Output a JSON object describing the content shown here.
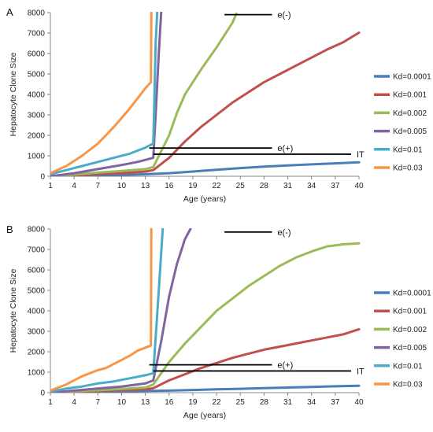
{
  "chart_data": [
    {
      "panel_label": "A",
      "type": "line",
      "ylabel": "Hepatocyte Clone Size",
      "xlabel": "Age (years)",
      "xlim": [
        1,
        40
      ],
      "ylim": [
        0,
        8000
      ],
      "x_ticks": [
        "1",
        "4",
        "7",
        "10",
        "13",
        "16",
        "19",
        "22",
        "25",
        "28",
        "31",
        "34",
        "37",
        "40"
      ],
      "y_ticks": [
        "0",
        "1000",
        "2000",
        "3000",
        "4000",
        "5000",
        "6000",
        "7000",
        "8000"
      ],
      "annotations": [
        {
          "text": "e(-)",
          "line_from": [
            23,
            7900
          ],
          "line_to": [
            29,
            7900
          ]
        },
        {
          "text": "e(+)",
          "line_from": [
            13.5,
            1380
          ],
          "line_to": [
            29,
            1380
          ]
        },
        {
          "text": "IT",
          "line_from": [
            14,
            1080
          ],
          "line_to": [
            39,
            1080
          ]
        }
      ],
      "series": [
        {
          "name": "Kd=0.0001",
          "color": "#4a7ebb",
          "points": [
            [
              1,
              0
            ],
            [
              4,
              20
            ],
            [
              7,
              45
            ],
            [
              10,
              70
            ],
            [
              13,
              100
            ],
            [
              16,
              150
            ],
            [
              19,
              230
            ],
            [
              22,
              320
            ],
            [
              25,
              400
            ],
            [
              28,
              470
            ],
            [
              31,
              530
            ],
            [
              34,
              580
            ],
            [
              37,
              630
            ],
            [
              40,
              680
            ]
          ]
        },
        {
          "name": "Kd=0.001",
          "color": "#c0504d",
          "points": [
            [
              1,
              0
            ],
            [
              4,
              50
            ],
            [
              7,
              100
            ],
            [
              10,
              150
            ],
            [
              13,
              230
            ],
            [
              14,
              300
            ],
            [
              16,
              900
            ],
            [
              18,
              1700
            ],
            [
              20,
              2400
            ],
            [
              22,
              3000
            ],
            [
              24,
              3600
            ],
            [
              26,
              4100
            ],
            [
              28,
              4600
            ],
            [
              30,
              5000
            ],
            [
              32,
              5400
            ],
            [
              34,
              5800
            ],
            [
              36,
              6200
            ],
            [
              38,
              6550
            ],
            [
              40,
              7020
            ]
          ]
        },
        {
          "name": "Kd=0.002",
          "color": "#9bbb59",
          "points": [
            [
              1,
              0
            ],
            [
              4,
              80
            ],
            [
              7,
              180
            ],
            [
              10,
              260
            ],
            [
              13,
              350
            ],
            [
              14,
              450
            ],
            [
              16,
              2000
            ],
            [
              17,
              3100
            ],
            [
              18,
              4000
            ],
            [
              20,
              5200
            ],
            [
              22,
              6300
            ],
            [
              24,
              7500
            ],
            [
              24.5,
              7950
            ]
          ]
        },
        {
          "name": "Kd=0.005",
          "color": "#8064a2",
          "points": [
            [
              1,
              0
            ],
            [
              4,
              150
            ],
            [
              7,
              350
            ],
            [
              10,
              550
            ],
            [
              12,
              700
            ],
            [
              13.8,
              880
            ],
            [
              14,
              900
            ],
            [
              14.3,
              3000
            ],
            [
              14.7,
              6000
            ],
            [
              15,
              8000
            ]
          ]
        },
        {
          "name": "Kd=0.01",
          "color": "#4bacc6",
          "points": [
            [
              1,
              100
            ],
            [
              3,
              300
            ],
            [
              5,
              500
            ],
            [
              7,
              700
            ],
            [
              9,
              900
            ],
            [
              11,
              1100
            ],
            [
              13,
              1400
            ],
            [
              14,
              1600
            ],
            [
              14.15,
              4000
            ],
            [
              14.3,
              6500
            ],
            [
              14.5,
              8000
            ]
          ]
        },
        {
          "name": "Kd=0.03",
          "color": "#f79646",
          "points": [
            [
              1,
              150
            ],
            [
              3,
              500
            ],
            [
              5,
              1000
            ],
            [
              7,
              1600
            ],
            [
              8,
              2000
            ],
            [
              9,
              2400
            ],
            [
              10,
              2850
            ],
            [
              11,
              3300
            ],
            [
              12,
              3800
            ],
            [
              13,
              4300
            ],
            [
              13.7,
              4600
            ],
            [
              13.75,
              8000
            ]
          ]
        }
      ]
    },
    {
      "panel_label": "B",
      "type": "line",
      "ylabel": "Hepatocyte Clone Size",
      "xlabel": "Age (years)",
      "xlim": [
        1,
        40
      ],
      "ylim": [
        0,
        8000
      ],
      "x_ticks": [
        "1",
        "4",
        "7",
        "10",
        "13",
        "16",
        "19",
        "22",
        "25",
        "28",
        "31",
        "34",
        "37",
        "40"
      ],
      "y_ticks": [
        "0",
        "1000",
        "2000",
        "3000",
        "4000",
        "5000",
        "6000",
        "7000",
        "8000"
      ],
      "annotations": [
        {
          "text": "e(-)",
          "line_from": [
            23,
            7850
          ],
          "line_to": [
            29,
            7850
          ]
        },
        {
          "text": "e(+)",
          "line_from": [
            13.5,
            1360
          ],
          "line_to": [
            29,
            1360
          ]
        },
        {
          "text": "IT",
          "line_from": [
            14,
            1060
          ],
          "line_to": [
            39,
            1060
          ]
        }
      ],
      "series": [
        {
          "name": "Kd=0.0001",
          "color": "#4a7ebb",
          "points": [
            [
              1,
              0
            ],
            [
              4,
              20
            ],
            [
              7,
              40
            ],
            [
              10,
              60
            ],
            [
              13,
              80
            ],
            [
              16,
              100
            ],
            [
              19,
              130
            ],
            [
              22,
              160
            ],
            [
              25,
              190
            ],
            [
              28,
              220
            ],
            [
              31,
              250
            ],
            [
              34,
              280
            ],
            [
              37,
              310
            ],
            [
              40,
              340
            ]
          ]
        },
        {
          "name": "Kd=0.001",
          "color": "#c0504d",
          "points": [
            [
              1,
              0
            ],
            [
              4,
              40
            ],
            [
              7,
              80
            ],
            [
              10,
              120
            ],
            [
              13,
              160
            ],
            [
              14,
              220
            ],
            [
              16,
              600
            ],
            [
              18,
              900
            ],
            [
              20,
              1200
            ],
            [
              22,
              1450
            ],
            [
              24,
              1700
            ],
            [
              26,
              1900
            ],
            [
              28,
              2100
            ],
            [
              30,
              2250
            ],
            [
              32,
              2400
            ],
            [
              34,
              2550
            ],
            [
              36,
              2700
            ],
            [
              38,
              2850
            ],
            [
              40,
              3100
            ]
          ]
        },
        {
          "name": "Kd=0.002",
          "color": "#9bbb59",
          "points": [
            [
              1,
              0
            ],
            [
              4,
              60
            ],
            [
              7,
              120
            ],
            [
              10,
              180
            ],
            [
              13,
              250
            ],
            [
              14,
              400
            ],
            [
              16,
              1500
            ],
            [
              18,
              2400
            ],
            [
              20,
              3200
            ],
            [
              22,
              4000
            ],
            [
              24,
              4600
            ],
            [
              26,
              5200
            ],
            [
              28,
              5700
            ],
            [
              30,
              6200
            ],
            [
              32,
              6600
            ],
            [
              34,
              6900
            ],
            [
              36,
              7150
            ],
            [
              38,
              7250
            ],
            [
              40,
              7300
            ]
          ]
        },
        {
          "name": "Kd=0.005",
          "color": "#8064a2",
          "points": [
            [
              1,
              0
            ],
            [
              4,
              100
            ],
            [
              7,
              200
            ],
            [
              10,
              300
            ],
            [
              13,
              450
            ],
            [
              14,
              600
            ],
            [
              15,
              2500
            ],
            [
              16,
              4700
            ],
            [
              17,
              6300
            ],
            [
              18,
              7500
            ],
            [
              18.7,
              8000
            ]
          ]
        },
        {
          "name": "Kd=0.01",
          "color": "#4bacc6",
          "points": [
            [
              1,
              50
            ],
            [
              3,
              200
            ],
            [
              5,
              300
            ],
            [
              7,
              450
            ],
            [
              9,
              550
            ],
            [
              11,
              700
            ],
            [
              13,
              850
            ],
            [
              14,
              950
            ],
            [
              14.7,
              5000
            ],
            [
              15.2,
              8000
            ]
          ]
        },
        {
          "name": "Kd=0.03",
          "color": "#f79646",
          "points": [
            [
              1,
              100
            ],
            [
              3,
              400
            ],
            [
              5,
              800
            ],
            [
              7,
              1100
            ],
            [
              8,
              1200
            ],
            [
              9,
              1400
            ],
            [
              10,
              1600
            ],
            [
              11,
              1800
            ],
            [
              12,
              2050
            ],
            [
              13,
              2200
            ],
            [
              13.7,
              2300
            ],
            [
              13.75,
              8000
            ]
          ]
        }
      ]
    }
  ]
}
